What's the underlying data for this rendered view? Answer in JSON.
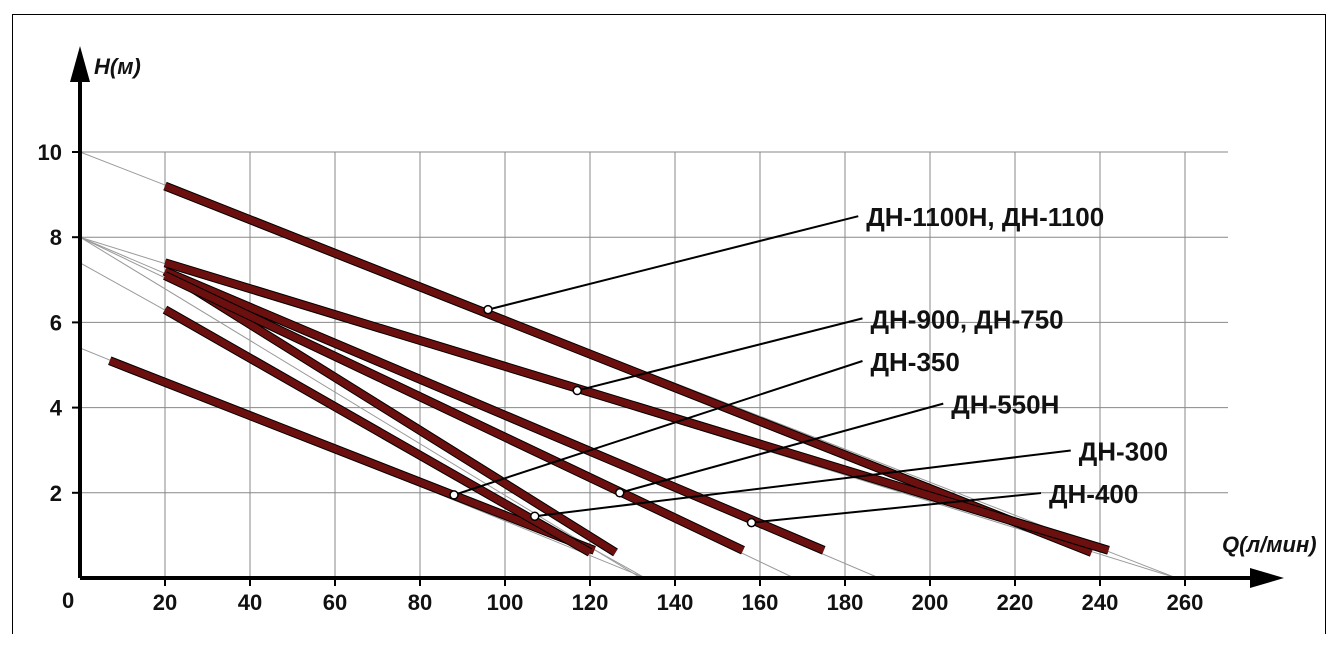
{
  "chart_data": {
    "type": "line",
    "title": "",
    "xlabel": "Q(л/мин)",
    "ylabel": "H(м)",
    "origin_label": "0",
    "xlim": [
      0,
      260
    ],
    "ylim": [
      0,
      10
    ],
    "x_ticks": [
      20,
      40,
      60,
      80,
      100,
      120,
      140,
      160,
      180,
      200,
      220,
      240,
      260
    ],
    "y_ticks": [
      2,
      4,
      6,
      8,
      10
    ],
    "grid": true,
    "legend": "callout labels",
    "colors": {
      "curve": "#6b0f0f",
      "grid": "#888888",
      "guide": "#999999",
      "axis": "#000000",
      "callout": "#000000"
    },
    "series": [
      {
        "name": "ДН-1100Н, ДН-1100",
        "x": [
          20,
          238
        ],
        "y": [
          9.2,
          0.6
        ],
        "guide_x": [
          0,
          258
        ],
        "guide_y": [
          10,
          0
        ],
        "marker": {
          "x": 96,
          "y": 6.3
        },
        "label_pos": {
          "x": 185,
          "y": 8.4
        }
      },
      {
        "name": "ДН-900, ДН-750",
        "x": [
          20,
          242
        ],
        "y": [
          7.4,
          0.65
        ],
        "guide_x": [
          0,
          258
        ],
        "guide_y": [
          8,
          0
        ],
        "marker": {
          "x": 117,
          "y": 4.4
        },
        "label_pos": {
          "x": 186,
          "y": 6.0
        }
      },
      {
        "name": "ДН-350",
        "x": [
          20,
          126
        ],
        "y": [
          7.2,
          0.6
        ],
        "guide_x": [
          0,
          132
        ],
        "guide_y": [
          8,
          0
        ],
        "marker": {
          "x": 88,
          "y": 1.95
        },
        "label_pos": {
          "x": 186,
          "y": 5.0
        }
      },
      {
        "name": "ДН-550Н",
        "x": [
          20,
          175
        ],
        "y": [
          7.2,
          0.65
        ],
        "guide_x": [
          0,
          188
        ],
        "guide_y": [
          8,
          0
        ],
        "marker": {
          "x": 127,
          "y": 2.0
        },
        "label_pos": {
          "x": 205,
          "y": 4.0
        }
      },
      {
        "name": "ДН-300",
        "x": [
          20,
          156
        ],
        "y": [
          7.1,
          0.65
        ],
        "guide_x": [
          0,
          168
        ],
        "guide_y": [
          8,
          0
        ],
        "marker": {
          "x": 107,
          "y": 1.45
        },
        "label_pos": {
          "x": 235,
          "y": 2.9
        }
      },
      {
        "name": "ДН-400",
        "x": [
          7,
          121
        ],
        "y": [
          5.1,
          0.65
        ],
        "guide_x": [
          0,
          133
        ],
        "guide_y": [
          5.4,
          0
        ],
        "marker": {
          "x": 158,
          "y": 1.3
        },
        "label_pos": {
          "x": 228,
          "y": 1.9
        }
      },
      {
        "name": "",
        "x": [
          20,
          120
        ],
        "y": [
          6.3,
          0.6
        ],
        "guide_x": [
          0,
          133
        ],
        "guide_y": [
          7.4,
          0
        ]
      }
    ]
  }
}
